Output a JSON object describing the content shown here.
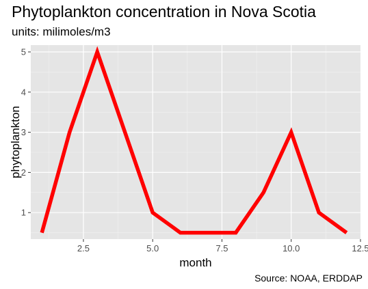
{
  "chart_data": {
    "type": "line",
    "title": "Phytoplankton concentration in Nova Scotia",
    "subtitle": "units: milimoles/m3",
    "caption": "Source: NOAA, ERDDAP",
    "xlabel": "month",
    "ylabel": "phytoplankton",
    "xlim": [
      0.6,
      12.5
    ],
    "ylim": [
      0.34,
      5.17
    ],
    "x_ticks": [
      2.5,
      5.0,
      7.5,
      10.0,
      12.5
    ],
    "x_tick_labels": [
      "2.5",
      "5.0",
      "7.5",
      "10.0",
      "12.5"
    ],
    "y_ticks": [
      1,
      2,
      3,
      4,
      5
    ],
    "y_tick_labels": [
      "1",
      "2",
      "3",
      "4",
      "5"
    ],
    "grid": true,
    "series": [
      {
        "color": "#ff0000",
        "x": [
          1,
          2,
          3,
          4,
          5,
          6,
          7,
          8,
          9,
          10,
          11,
          12
        ],
        "values": [
          0.5,
          3,
          5,
          3,
          1,
          0.5,
          0.5,
          0.5,
          1.5,
          3,
          1,
          0.5
        ]
      }
    ]
  },
  "colors": {
    "panel": "#e5e5e5",
    "grid_major": "#ffffff",
    "grid_minor": "#f2f2f2",
    "line": "#ff0000"
  }
}
